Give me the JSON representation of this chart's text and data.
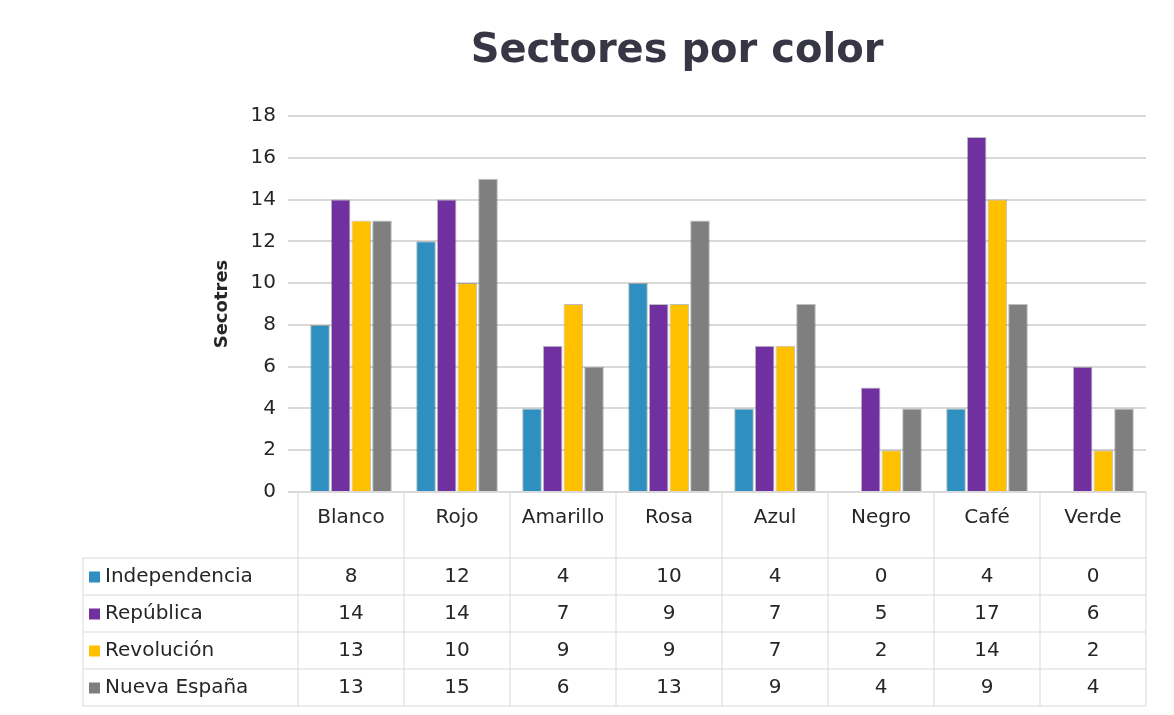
{
  "chart_data": {
    "type": "bar",
    "title": "Sectores por color",
    "ylabel": "Secotres",
    "categories": [
      "Blanco",
      "Rojo",
      "Amarillo",
      "Rosa",
      "Azul",
      "Negro",
      "Café",
      "Verde"
    ],
    "series": [
      {
        "name": "Independencia",
        "color": "#2e8fc0",
        "values": [
          8,
          12,
          4,
          10,
          4,
          0,
          4,
          0
        ]
      },
      {
        "name": "República",
        "color": "#7030a0",
        "values": [
          14,
          14,
          7,
          9,
          7,
          5,
          17,
          6
        ]
      },
      {
        "name": "Revolución",
        "color": "#ffc000",
        "values": [
          13,
          10,
          9,
          9,
          7,
          2,
          14,
          2
        ]
      },
      {
        "name": "Nueva España",
        "color": "#7f7f7f",
        "values": [
          13,
          15,
          6,
          13,
          9,
          4,
          9,
          4
        ]
      }
    ],
    "ylim": [
      0,
      18
    ],
    "yticks": [
      0,
      2,
      4,
      6,
      8,
      10,
      12,
      14,
      16,
      18
    ],
    "grid": "y",
    "legend": "bottom",
    "data_labels": true
  }
}
